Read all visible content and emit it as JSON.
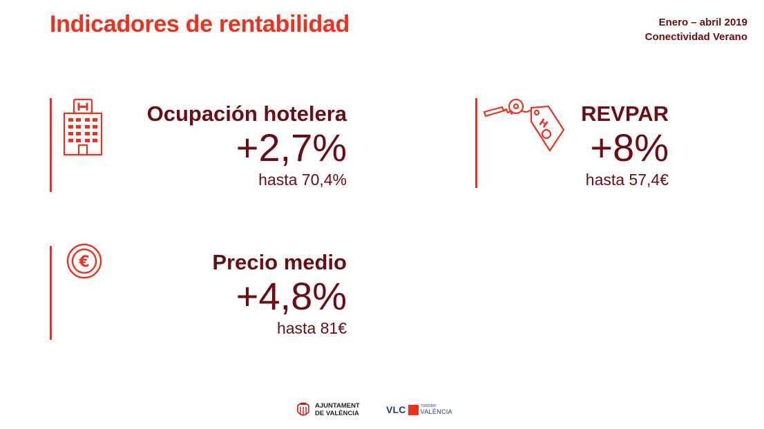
{
  "title": "Indicadores de rentabilidad",
  "header": {
    "period": "Enero – abril 2019",
    "subtitle": "Conectividad Verano"
  },
  "indicators": [
    {
      "label": "Ocupación hotelera",
      "value": "+2,7%",
      "sub": "hasta 70,4%",
      "icon": "hotel-building-icon"
    },
    {
      "label": "REVPAR",
      "value": "+8%",
      "sub": "hasta 57,4€",
      "icon": "key-tag-icon"
    },
    {
      "label": "Precio medio",
      "value": "+4,8%",
      "sub": "hasta 81€",
      "icon": "euro-coin-icon"
    }
  ],
  "footer": {
    "ajuntament_line1": "AJUNTAMENT",
    "ajuntament_line2": "DE VALÈNCIA",
    "vlc": "VLC",
    "vlc_sub1": "TURISMO",
    "vlc_sub2": "VALÈNCIA"
  },
  "colors": {
    "accent": "#f0301c",
    "dark": "#6b0d12",
    "blue": "#1e3d8f"
  }
}
